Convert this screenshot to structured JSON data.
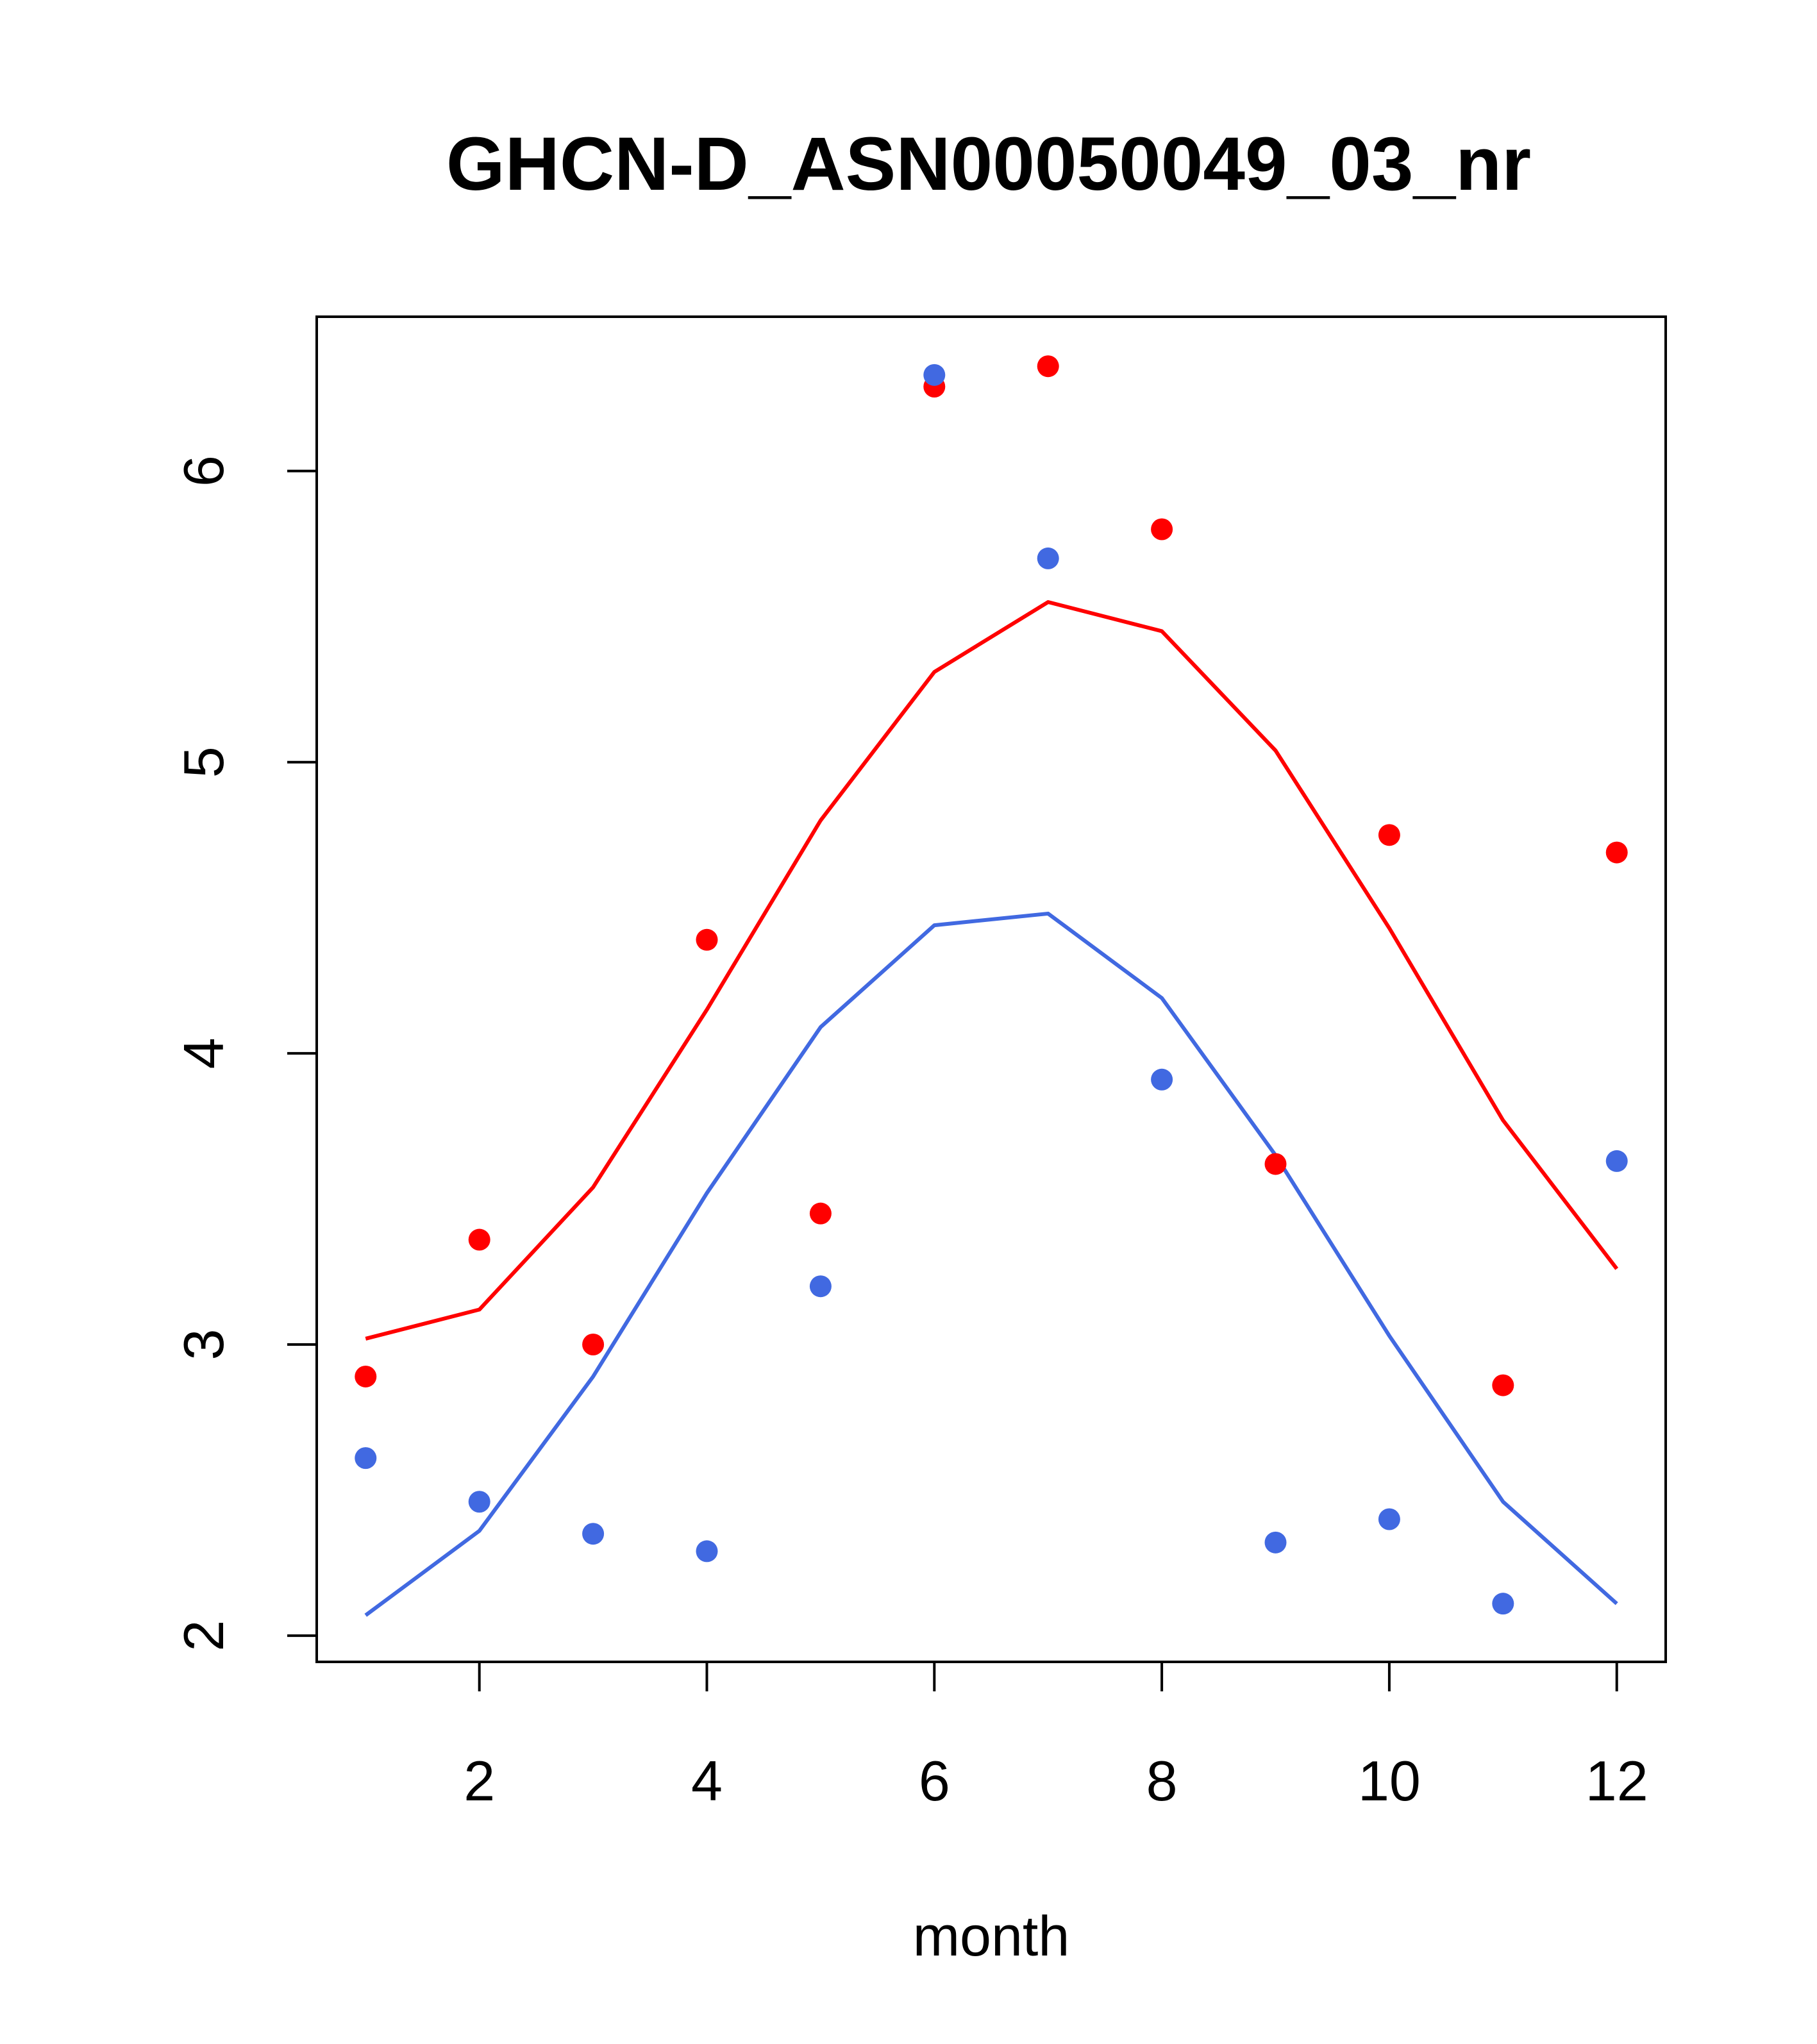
{
  "chart_data": {
    "type": "line",
    "title": "GHCN-D_ASN00050049_03_nr",
    "xlabel": "month",
    "ylabel": "",
    "xlim": [
      0.57,
      12.43
    ],
    "ylim": [
      1.91,
      6.53
    ],
    "x_ticks": [
      2,
      4,
      6,
      8,
      10,
      12
    ],
    "y_ticks": [
      2,
      3,
      4,
      5,
      6
    ],
    "x_tick_labels": [
      "2",
      "4",
      "6",
      "8",
      "10",
      "12"
    ],
    "y_tick_labels": [
      "2",
      "3",
      "4",
      "5",
      "6"
    ],
    "grid": false,
    "legend": "none",
    "x": [
      1,
      2,
      3,
      4,
      5,
      6,
      7,
      8,
      9,
      10,
      11,
      12
    ],
    "series": [
      {
        "color": "#ff0000",
        "kind": "line",
        "values": [
          3.02,
          3.12,
          3.54,
          4.15,
          4.8,
          5.31,
          5.55,
          5.45,
          5.04,
          4.43,
          3.77,
          3.26
        ]
      },
      {
        "color": "#4169e1",
        "kind": "line",
        "values": [
          2.07,
          2.36,
          2.89,
          3.52,
          4.09,
          4.44,
          4.48,
          4.19,
          3.65,
          3.03,
          2.46,
          2.11
        ]
      },
      {
        "color": "#ff0000",
        "kind": "points",
        "values": [
          2.89,
          3.36,
          3.0,
          4.39,
          3.45,
          6.29,
          6.36,
          5.8,
          3.62,
          4.75,
          2.86,
          4.69
        ]
      },
      {
        "color": "#4169e1",
        "kind": "points",
        "values": [
          2.61,
          2.46,
          2.35,
          2.29,
          3.2,
          6.33,
          5.7,
          3.91,
          2.32,
          2.4,
          2.11,
          3.63
        ]
      }
    ]
  }
}
